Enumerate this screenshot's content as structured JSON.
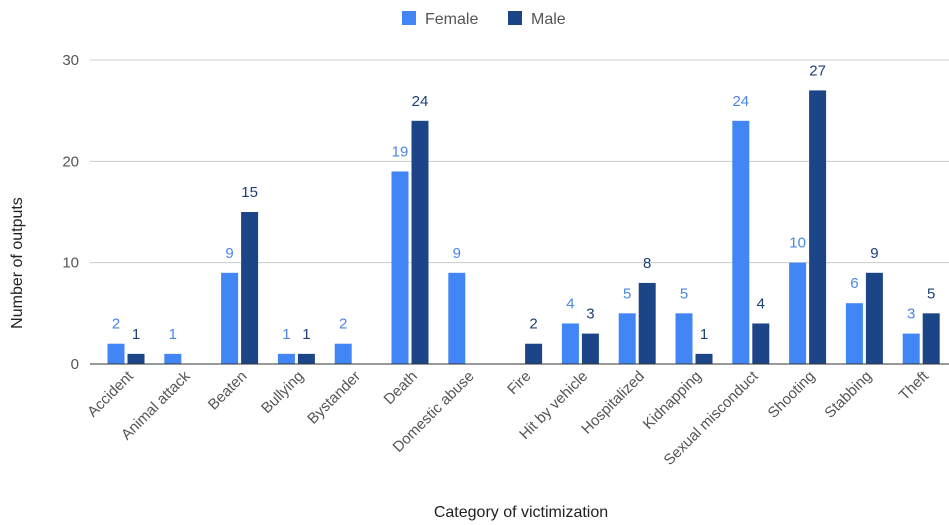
{
  "chart_data": {
    "type": "bar",
    "xlabel": "Category of victimization",
    "ylabel": "Number of outputs",
    "ylim": [
      0,
      30
    ],
    "yticks": [
      0,
      10,
      20,
      30
    ],
    "grid": true,
    "legend_position": "top",
    "categories": [
      "Accident",
      "Animal attack",
      "Beaten",
      "Bullying",
      "Bystander",
      "Death",
      "Domestic abuse",
      "Fire",
      "Hit by vehicle",
      "Hospitalized",
      "Kidnapping",
      "Sexual misconduct",
      "Shooting",
      "Stabbing",
      "Theft"
    ],
    "series": [
      {
        "name": "Female",
        "color": "#4285f4",
        "label_color": "#4a86e8",
        "values": [
          2,
          1,
          9,
          1,
          2,
          19,
          9,
          null,
          4,
          5,
          5,
          24,
          10,
          6,
          3
        ]
      },
      {
        "name": "Male",
        "color": "#1c4587",
        "label_color": "#1c3f7a",
        "values": [
          1,
          null,
          15,
          1,
          null,
          24,
          null,
          2,
          3,
          8,
          1,
          4,
          27,
          9,
          5
        ]
      }
    ]
  }
}
